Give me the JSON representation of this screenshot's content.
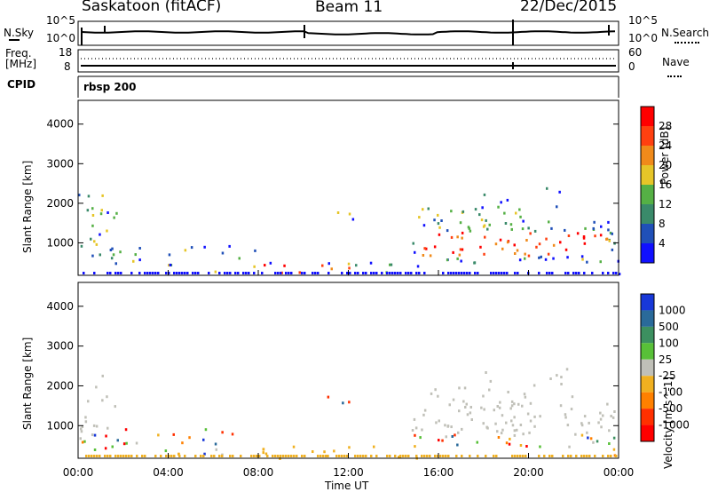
{
  "header": {
    "station": "Saskatoon (fitACF)",
    "beam": "Beam 11",
    "date": "22/Dec/2015"
  },
  "noise_panel": {
    "left_label": "N.Sky",
    "right_label": "N.Search",
    "left_ticks": [
      "10^5",
      "10^0"
    ],
    "right_ticks": [
      "10^5",
      "10^0"
    ]
  },
  "freq_panel": {
    "left_label_1": "Freq.",
    "left_label_2": "[MHz]",
    "right_label": "Nave",
    "left_ticks": [
      "18",
      "8"
    ],
    "right_ticks": [
      "60",
      "0"
    ],
    "cpid_label": "CPID",
    "cpid_value": "rbsp 200"
  },
  "chart_data": [
    {
      "type": "heatmap",
      "name": "power",
      "ylabel": "Slant Range [km]",
      "ylim": [
        180,
        4600
      ],
      "yticks": [
        "1000",
        "2000",
        "3000",
        "4000"
      ],
      "colorbar_label": "Power [dB]",
      "colorbar_ticks": [
        "4",
        "8",
        "12",
        "16",
        "20",
        "24",
        "28"
      ],
      "colors": [
        "#1010ff",
        "#2050b8",
        "#3a8a6a",
        "#55b045",
        "#e6c528",
        "#f08a1a",
        "#ff4010",
        "#ff0000"
      ]
    },
    {
      "type": "heatmap",
      "name": "velocity",
      "ylabel": "Slant Range [km]",
      "ylim": [
        180,
        4600
      ],
      "yticks": [
        "1000",
        "2000",
        "3000",
        "4000"
      ],
      "colorbar_label": "Velocity [m s^-1]",
      "colorbar_ticks": [
        "1000",
        "500",
        "100",
        "25",
        "-25",
        "-100",
        "-500",
        "-1000"
      ],
      "colors": [
        "#1838d8",
        "#2a6a9a",
        "#3c9060",
        "#58c038",
        "#c0c0b8",
        "#f0b020",
        "#ff8000",
        "#ff3000",
        "#ff0000"
      ]
    }
  ],
  "xaxis": {
    "ticks": [
      "00:00",
      "04:00",
      "08:00",
      "12:00",
      "16:00",
      "20:00",
      "00:00"
    ],
    "label": "Time UT"
  }
}
